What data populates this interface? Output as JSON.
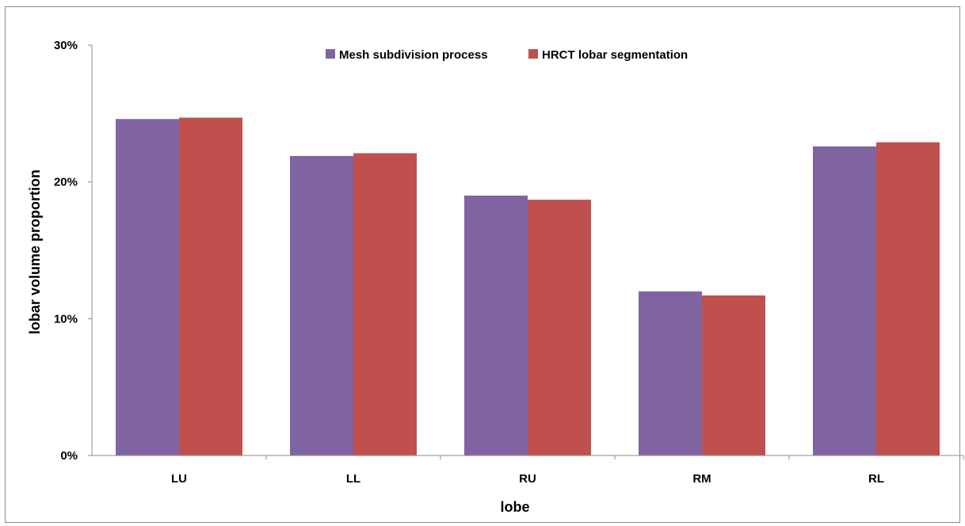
{
  "chart_data": {
    "type": "bar",
    "title": "",
    "xlabel": "lobe",
    "ylabel": "lobar volume proportion",
    "categories": [
      "LU",
      "LL",
      "RU",
      "RM",
      "RL"
    ],
    "series": [
      {
        "name": "Mesh subdivision process",
        "color": "#8064a2",
        "values": [
          24.6,
          21.9,
          19.0,
          12.0,
          22.6
        ]
      },
      {
        "name": "HRCT lobar segmentation",
        "color": "#c0504d",
        "values": [
          24.7,
          22.1,
          18.7,
          11.7,
          22.9
        ]
      }
    ],
    "ylim": [
      0,
      30
    ],
    "yticks": [
      {
        "value": 0,
        "label": "0%"
      },
      {
        "value": 10,
        "label": "10%"
      },
      {
        "value": 20,
        "label": "20%"
      },
      {
        "value": 30,
        "label": "30%"
      }
    ],
    "grid": false,
    "legend_position": "top-center"
  }
}
